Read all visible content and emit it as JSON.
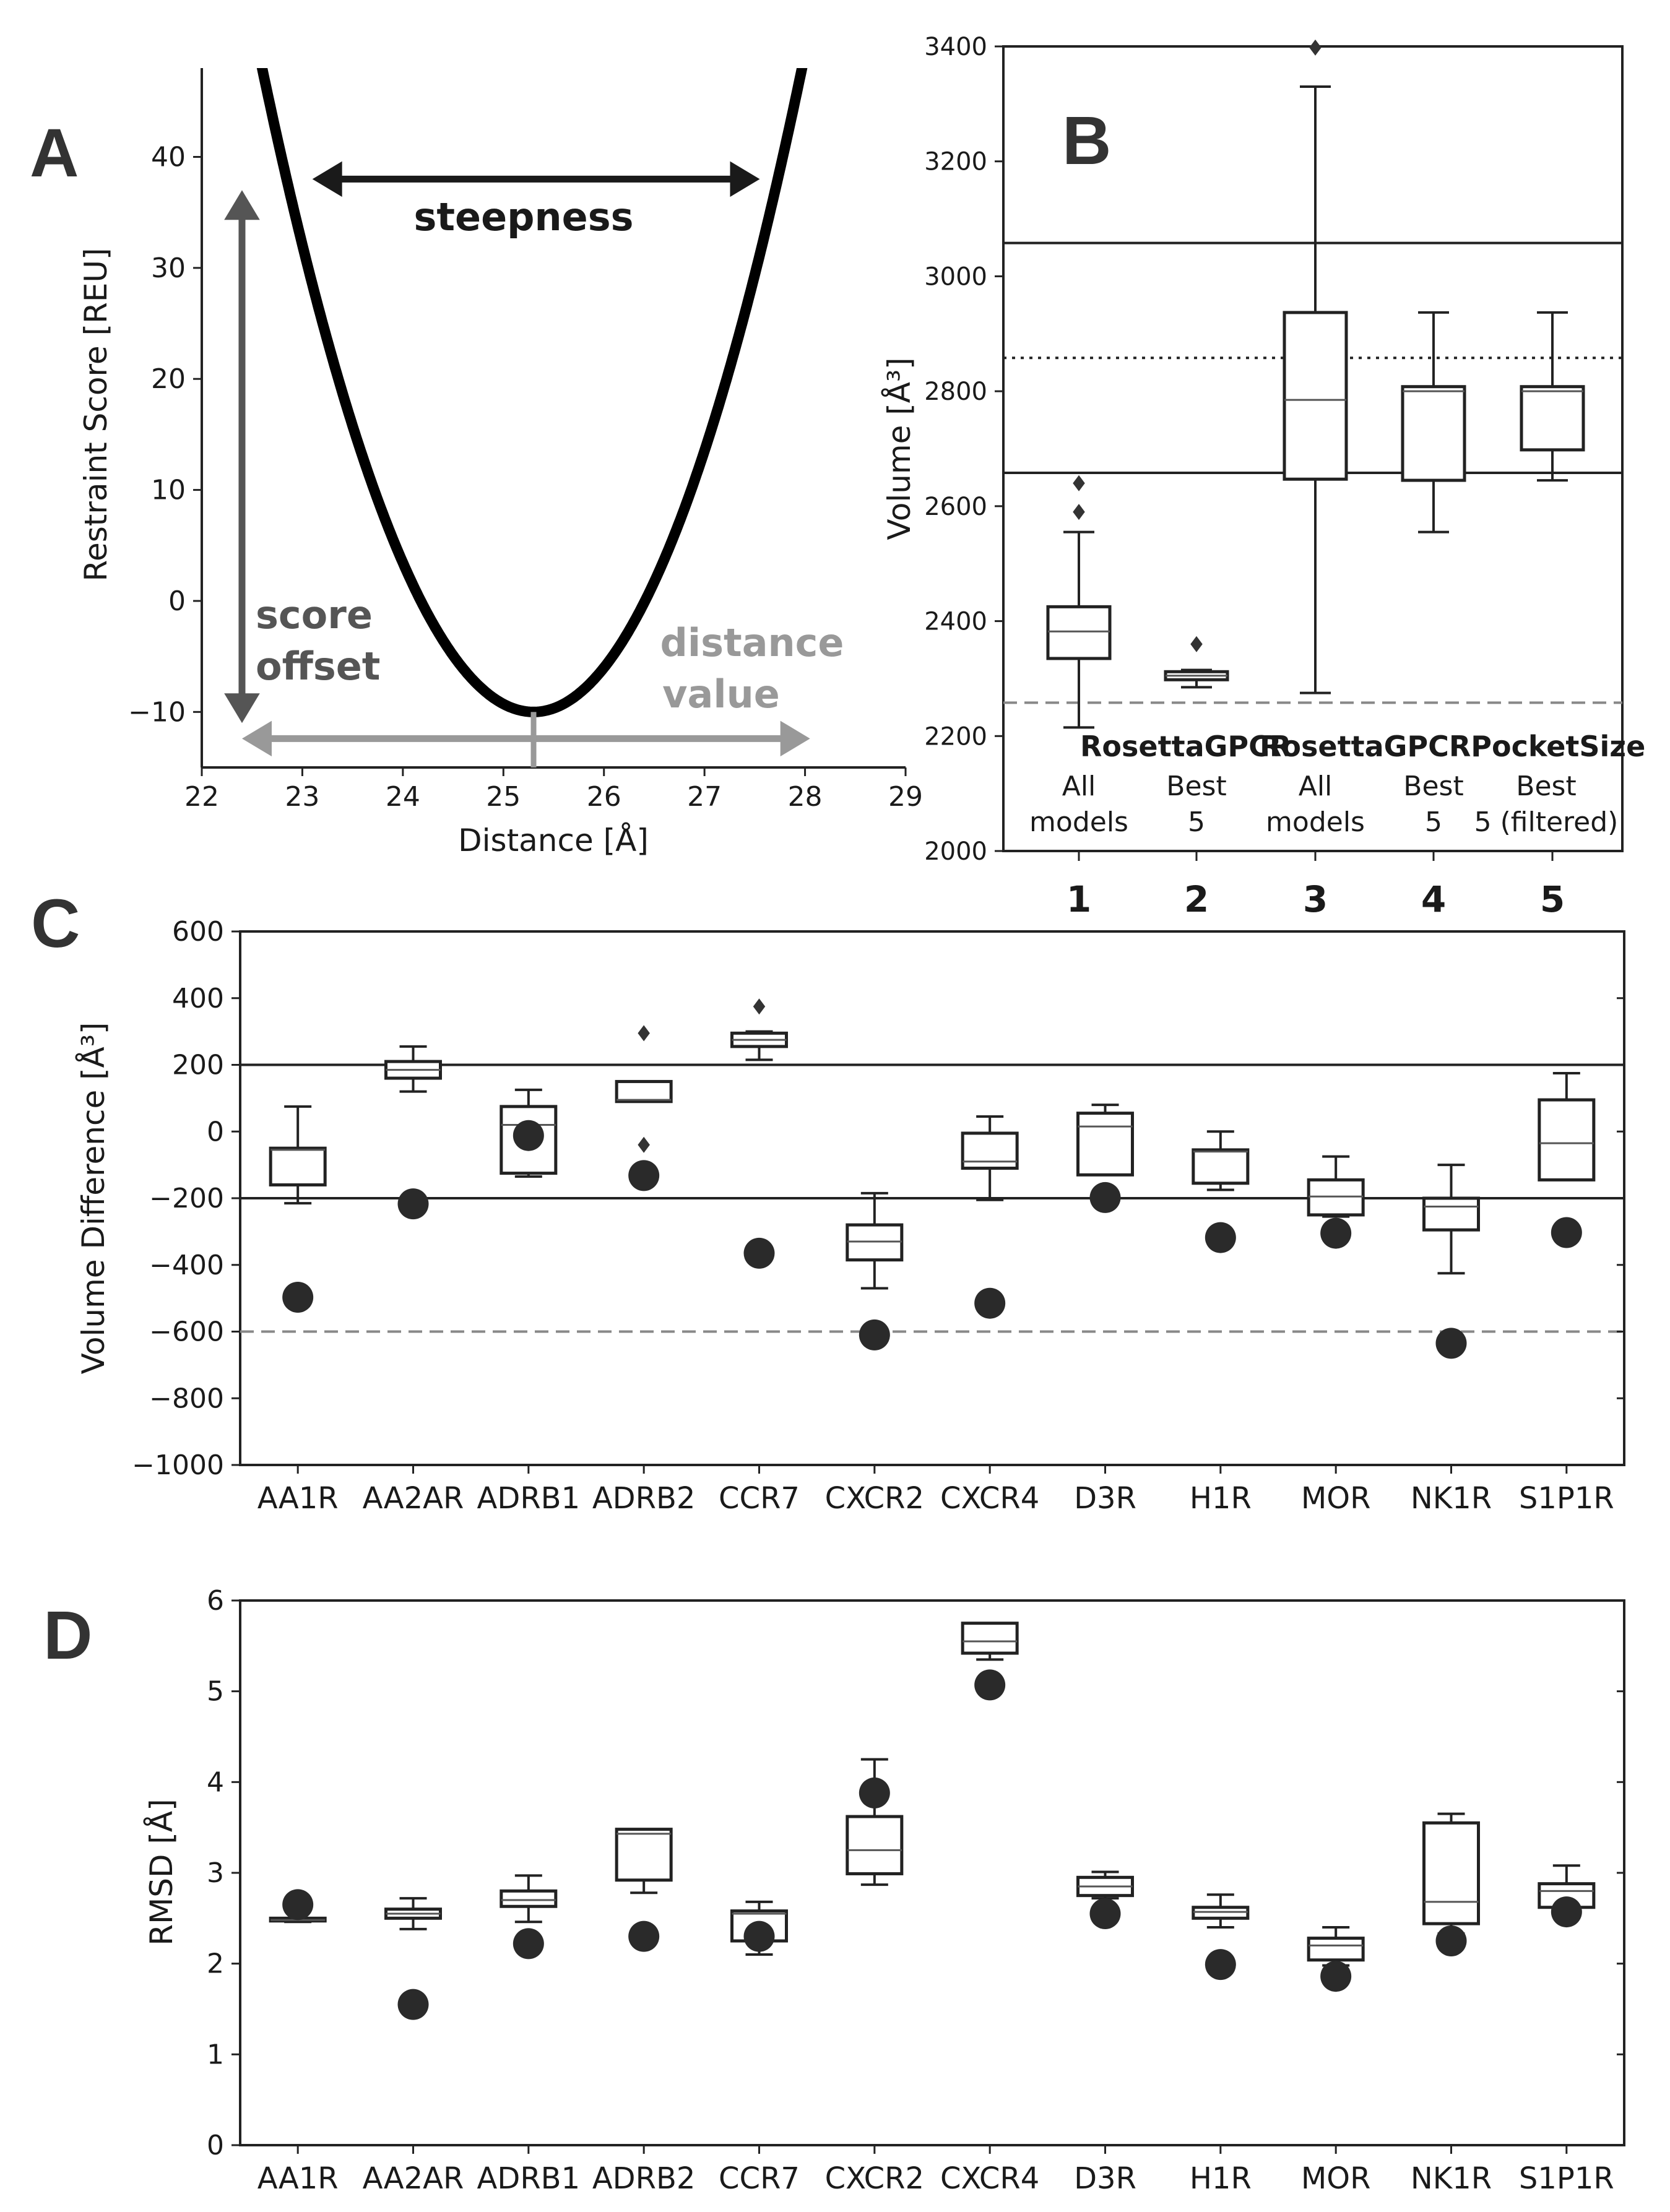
{
  "chart_data": [
    {
      "id": "A",
      "type": "line",
      "panel_label": "A",
      "xlabel": "Distance [Å]",
      "ylabel": "Restraint Score [REU]",
      "xlim": [
        22,
        29
      ],
      "ylim": [
        -15,
        48
      ],
      "xticks": [
        "22",
        "23",
        "24",
        "25",
        "26",
        "27",
        "28",
        "29"
      ],
      "yticks": [
        "−10",
        "0",
        "10",
        "20",
        "30",
        "40"
      ],
      "series": [
        {
          "name": "restraint",
          "curve": "parabola",
          "x_min": 25.3,
          "y_min": -10,
          "y_at_x_22_6": 48,
          "y_at_x_27_97": 48
        }
      ],
      "annotations": {
        "steepness": "steepness",
        "score_offset_line1": "score",
        "score_offset_line2": "offset",
        "distance_value_line1": "distance",
        "distance_value_line2": "value"
      },
      "annotation_values": {
        "steepness_arrow_x": [
          23.1,
          27.55
        ],
        "steepness_arrow_y": 38,
        "offset_arrow_x": 22.4,
        "offset_arrow_y": [
          37,
          -11
        ],
        "distance_arrow_x": [
          22.4,
          28.05
        ],
        "distance_arrow_y": -12.4,
        "distance_marker_x": 25.3
      },
      "colors": {
        "curve": "#000000",
        "steepness": "#1a1a1a",
        "offset": "#555555",
        "distance": "#999999"
      }
    },
    {
      "id": "B",
      "type": "box",
      "panel_label": "B",
      "ylabel": "Volume [Å³]",
      "ylim": [
        2000,
        3400
      ],
      "yticks": [
        "2000",
        "2200",
        "2400",
        "2600",
        "2800",
        "3000",
        "3200",
        "3400"
      ],
      "categories": [
        "1",
        "2",
        "3",
        "4",
        "5"
      ],
      "group_labels": [
        "RosettaGPCR",
        "RosettaGPCRPocketSize"
      ],
      "sub_labels": [
        [
          "All",
          "models"
        ],
        [
          "Best",
          "5"
        ],
        [
          "All",
          "models"
        ],
        [
          "Best",
          "5"
        ],
        [
          "Best",
          "5 (filtered)"
        ]
      ],
      "boxes": [
        {
          "min": 2215,
          "q1": 2335,
          "median": 2382,
          "q3": 2425,
          "max": 2555,
          "outliers": [
            2590,
            2640
          ]
        },
        {
          "min": 2285,
          "q1": 2298,
          "median": 2305,
          "q3": 2312,
          "max": 2315,
          "outliers": [
            2360
          ]
        },
        {
          "min": 2275,
          "q1": 2647,
          "median": 2785,
          "q3": 2937,
          "max": 3330,
          "outliers": [
            3398
          ]
        },
        {
          "min": 2555,
          "q1": 2645,
          "median": 2800,
          "q3": 2808,
          "max": 2937,
          "outliers": []
        },
        {
          "min": 2645,
          "q1": 2698,
          "median": 2800,
          "q3": 2808,
          "max": 2937,
          "outliers": []
        }
      ],
      "reference_lines": [
        {
          "y": 3058,
          "style": "solid"
        },
        {
          "y": 2858,
          "style": "dotted"
        },
        {
          "y": 2658,
          "style": "solid"
        },
        {
          "y": 2258,
          "style": "dashed"
        }
      ]
    },
    {
      "id": "C",
      "type": "box",
      "panel_label": "C",
      "ylabel": "Volume Difference [Å³]",
      "ylim": [
        -1000,
        600
      ],
      "yticks": [
        "−1000",
        "−800",
        "−600",
        "−400",
        "−200",
        "0",
        "200",
        "400",
        "600"
      ],
      "categories": [
        "AA1R",
        "AA2AR",
        "ADRB1",
        "ADRB2",
        "CCR7",
        "CXCR2",
        "CXCR4",
        "D3R",
        "H1R",
        "MOR",
        "NK1R",
        "S1P1R"
      ],
      "boxes": [
        {
          "min": -215,
          "q1": -160,
          "median": -55,
          "q3": -50,
          "max": 75,
          "outliers": []
        },
        {
          "min": 120,
          "q1": 160,
          "median": 185,
          "q3": 210,
          "max": 255,
          "outliers": []
        },
        {
          "min": -135,
          "q1": -125,
          "median": 20,
          "q3": 75,
          "max": 125,
          "outliers": []
        },
        {
          "min": 90,
          "q1": 90,
          "median": 95,
          "q3": 150,
          "max": 150,
          "outliers": [
            295,
            -40
          ]
        },
        {
          "min": 215,
          "q1": 255,
          "median": 275,
          "q3": 295,
          "max": 300,
          "outliers": [
            375
          ]
        },
        {
          "min": -470,
          "q1": -385,
          "median": -330,
          "q3": -280,
          "max": -185,
          "outliers": []
        },
        {
          "min": -205,
          "q1": -110,
          "median": -90,
          "q3": -5,
          "max": 45,
          "outliers": []
        },
        {
          "min": -130,
          "q1": -130,
          "median": 15,
          "q3": 55,
          "max": 80,
          "outliers": []
        },
        {
          "min": -175,
          "q1": -155,
          "median": -60,
          "q3": -55,
          "max": 0,
          "outliers": []
        },
        {
          "min": -255,
          "q1": -250,
          "median": -195,
          "q3": -145,
          "max": -75,
          "outliers": []
        },
        {
          "min": -425,
          "q1": -295,
          "median": -225,
          "q3": -200,
          "max": -100,
          "outliers": []
        },
        {
          "min": -145,
          "q1": -145,
          "median": -35,
          "q3": 95,
          "max": 175,
          "outliers": []
        }
      ],
      "points": [
        -497,
        -217,
        -12,
        -132,
        -365,
        -610,
        -515,
        -198,
        -318,
        -305,
        -635,
        -303
      ],
      "reference_lines": [
        {
          "y": 200,
          "style": "solid"
        },
        {
          "y": -200,
          "style": "solid"
        },
        {
          "y": -600,
          "style": "dashed"
        }
      ]
    },
    {
      "id": "D",
      "type": "box",
      "panel_label": "D",
      "ylabel": "RMSD [Å]",
      "ylim": [
        0,
        6
      ],
      "yticks": [
        "0",
        "1",
        "2",
        "3",
        "4",
        "5",
        "6"
      ],
      "categories": [
        "AA1R",
        "AA2AR",
        "ADRB1",
        "ADRB2",
        "CCR7",
        "CXCR2",
        "CXCR4",
        "D3R",
        "H1R",
        "MOR",
        "NK1R",
        "S1P1R"
      ],
      "boxes": [
        {
          "min": 2.46,
          "q1": 2.47,
          "median": 2.48,
          "q3": 2.5,
          "max": 2.5,
          "outliers": []
        },
        {
          "min": 2.38,
          "q1": 2.5,
          "median": 2.55,
          "q3": 2.6,
          "max": 2.72,
          "outliers": []
        },
        {
          "min": 2.46,
          "q1": 2.63,
          "median": 2.7,
          "q3": 2.8,
          "max": 2.97,
          "outliers": []
        },
        {
          "min": 2.78,
          "q1": 2.92,
          "median": 3.43,
          "q3": 3.48,
          "max": 3.48,
          "outliers": []
        },
        {
          "min": 2.1,
          "q1": 2.25,
          "median": 2.55,
          "q3": 2.58,
          "max": 2.68,
          "outliers": []
        },
        {
          "min": 2.87,
          "q1": 2.99,
          "median": 3.25,
          "q3": 3.62,
          "max": 4.25,
          "outliers": []
        },
        {
          "min": 5.35,
          "q1": 5.42,
          "median": 5.55,
          "q3": 5.75,
          "max": 5.75,
          "outliers": []
        },
        {
          "min": 2.72,
          "q1": 2.75,
          "median": 2.85,
          "q3": 2.95,
          "max": 3.01,
          "outliers": []
        },
        {
          "min": 2.4,
          "q1": 2.5,
          "median": 2.57,
          "q3": 2.62,
          "max": 2.76,
          "outliers": []
        },
        {
          "min": 1.98,
          "q1": 2.04,
          "median": 2.2,
          "q3": 2.28,
          "max": 2.4,
          "outliers": []
        },
        {
          "min": 2.33,
          "q1": 2.44,
          "median": 2.68,
          "q3": 3.55,
          "max": 3.65,
          "outliers": []
        },
        {
          "min": 2.52,
          "q1": 2.62,
          "median": 2.8,
          "q3": 2.88,
          "max": 3.08,
          "outliers": []
        }
      ],
      "points": [
        2.65,
        1.55,
        2.22,
        2.3,
        2.3,
        3.88,
        5.07,
        2.55,
        1.99,
        1.86,
        2.25,
        2.57
      ]
    }
  ]
}
